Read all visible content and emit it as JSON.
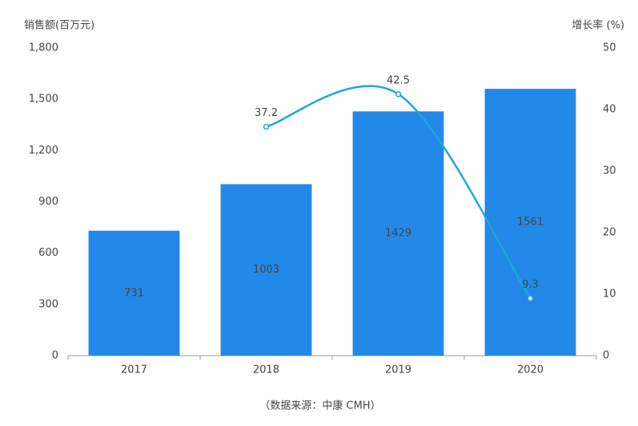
{
  "chart_data": {
    "type": "combo",
    "y_label": "销售额(百万元)",
    "y2_label": "增长率 (%)",
    "note": "（数据来源：中康 CMH）",
    "categories": [
      "2017",
      "2018",
      "2019",
      "2020"
    ],
    "series": [
      {
        "type": "bar",
        "color": "#2389e8",
        "values": [
          731,
          1003,
          1429,
          1561
        ]
      },
      {
        "type": "line",
        "axis": "y2",
        "color": "#1ea6da",
        "values": [
          null,
          37.2,
          42.5,
          9.3
        ]
      }
    ],
    "ylim": [
      0,
      1800
    ],
    "yticks": [
      0,
      300,
      600,
      900,
      {
        "value": 1200,
        "label": "1,200"
      },
      {
        "value": 1500,
        "label": "1,500"
      },
      {
        "value": 1800,
        "label": "1,800"
      }
    ],
    "y2lim": [
      0,
      50
    ],
    "y2ticks": [
      0,
      10,
      20,
      30,
      40,
      50
    ]
  }
}
